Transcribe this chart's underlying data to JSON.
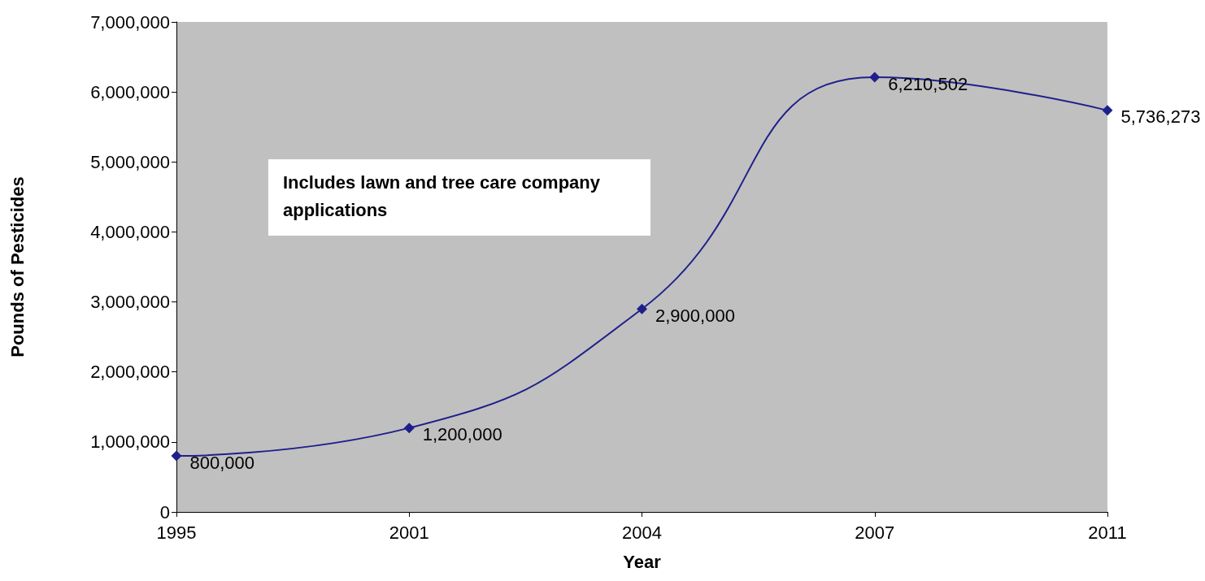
{
  "chart_data": {
    "type": "line",
    "xlabel": "Year",
    "ylabel": "Pounds of Pesticides",
    "categories": [
      "1995",
      "2001",
      "2004",
      "2007",
      "2011"
    ],
    "series": [
      {
        "color": "#1f1f8c",
        "values": [
          800000,
          1200000,
          2900000,
          6210502,
          5736273
        ],
        "value_labels": [
          "800,000",
          "1,200,000",
          "2,900,000",
          "6,210,502",
          "5,736,273"
        ]
      }
    ],
    "ylim": [
      0,
      7000000
    ],
    "yticks": [
      {
        "value": 0,
        "label": "0"
      },
      {
        "value": 1000000,
        "label": "1,000,000"
      },
      {
        "value": 2000000,
        "label": "2,000,000"
      },
      {
        "value": 3000000,
        "label": "3,000,000"
      },
      {
        "value": 4000000,
        "label": "4,000,000"
      },
      {
        "value": 5000000,
        "label": "5,000,000"
      },
      {
        "value": 6000000,
        "label": "6,000,000"
      },
      {
        "value": 7000000,
        "label": "7,000,000"
      }
    ],
    "annotations": [
      "Includes lawn and tree care company applications"
    ],
    "marker": "diamond",
    "grid": false
  }
}
